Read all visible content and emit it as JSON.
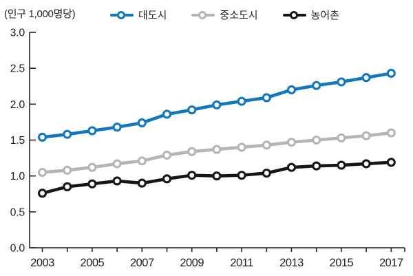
{
  "unit_label": "(인구 1,000명당)",
  "legend": {
    "items": [
      {
        "label": "대도시",
        "color": "#1277bd"
      },
      {
        "label": "중소도시",
        "color": "#b5b5b5"
      },
      {
        "label": "농어촌",
        "color": "#1a1417"
      }
    ]
  },
  "chart_data": {
    "type": "line",
    "title": "",
    "unit_note": "(인구 1,000명당)",
    "x": [
      2003,
      2004,
      2005,
      2006,
      2007,
      2008,
      2009,
      2010,
      2011,
      2012,
      2013,
      2014,
      2015,
      2016,
      2017
    ],
    "xtick_label_years": [
      2003,
      2005,
      2007,
      2009,
      2011,
      2013,
      2015,
      2017
    ],
    "ylim": [
      0.0,
      3.0
    ],
    "ytick_step": 0.5,
    "grid": false,
    "legend_position": "top",
    "series": [
      {
        "name": "대도시",
        "color": "#1277bd",
        "values": [
          1.54,
          1.58,
          1.63,
          1.68,
          1.74,
          1.86,
          1.92,
          1.99,
          2.04,
          2.09,
          2.2,
          2.26,
          2.31,
          2.37,
          2.43
        ]
      },
      {
        "name": "중소도시",
        "color": "#b5b5b5",
        "values": [
          1.05,
          1.08,
          1.12,
          1.17,
          1.21,
          1.29,
          1.34,
          1.37,
          1.4,
          1.43,
          1.47,
          1.5,
          1.53,
          1.56,
          1.6
        ]
      },
      {
        "name": "농어촌",
        "color": "#1a1417",
        "values": [
          0.76,
          0.85,
          0.89,
          0.93,
          0.9,
          0.96,
          1.01,
          1.0,
          1.01,
          1.04,
          1.12,
          1.14,
          1.15,
          1.17,
          1.19
        ]
      }
    ]
  },
  "colors": {
    "axis": "#262223",
    "tick_text": "#262223",
    "background": "#ffffff"
  }
}
